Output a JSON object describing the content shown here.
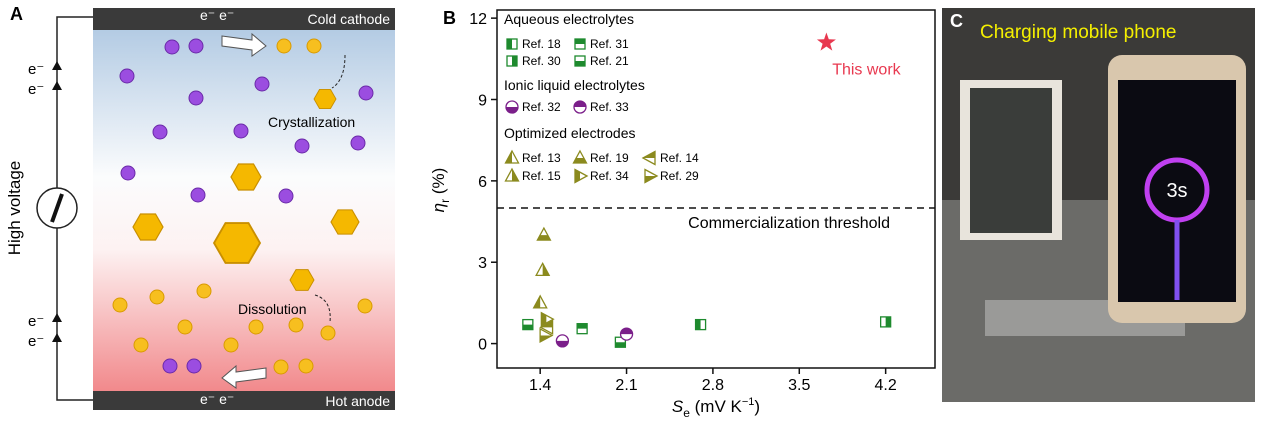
{
  "panel_a": {
    "label": "A",
    "top_bar": "Cold cathode",
    "bottom_bar": "Hot anode",
    "top_electrons": "e⁻ e⁻",
    "bottom_electrons": "e⁻ e⁻",
    "side_label": "High voltage",
    "electrons": [
      "e⁻",
      "e⁻",
      "e⁻",
      "e⁻"
    ],
    "crystallization": "Crystallization",
    "dissolution": "Dissolution"
  },
  "chart_data": {
    "type": "scatter",
    "panel_label": "B",
    "xlabel_parts": [
      "S",
      "e",
      " (mV K",
      "−1",
      ")"
    ],
    "ylabel_parts": [
      "η",
      "r",
      " (%)"
    ],
    "xlim": [
      1.05,
      4.6
    ],
    "ylim": [
      -0.9,
      12.3
    ],
    "xticks": [
      1.4,
      2.1,
      2.8,
      3.5,
      4.2
    ],
    "yticks": [
      0,
      3,
      6,
      9,
      12
    ],
    "threshold": {
      "value": 5,
      "label": "Commercialization threshold"
    },
    "highlight": {
      "name": "This work",
      "color": "#e8384f",
      "x": [
        3.72
      ],
      "values": [
        11.1
      ]
    },
    "groups": [
      {
        "title": "Aqueous electrolytes",
        "series": [
          {
            "name": "Ref. 18",
            "color": "#1e8a2e",
            "shape": "square",
            "half": "left",
            "x": [
              2.7
            ],
            "values": [
              0.7
            ]
          },
          {
            "name": "Ref. 31",
            "color": "#1e8a2e",
            "shape": "square",
            "half": "top",
            "x": [
              1.74
            ],
            "values": [
              0.55
            ]
          },
          {
            "name": "Ref. 30",
            "color": "#1e8a2e",
            "shape": "square",
            "half": "right",
            "x": [
              4.2
            ],
            "values": [
              0.8
            ]
          },
          {
            "name": "Ref. 21",
            "color": "#1e8a2e",
            "shape": "square",
            "half": "bottom",
            "x": [
              1.3,
              2.05
            ],
            "values": [
              0.7,
              0.05
            ]
          }
        ]
      },
      {
        "title": "Ionic liquid electrolytes",
        "series": [
          {
            "name": "Ref. 32",
            "color": "#7b1f8a",
            "shape": "circle",
            "half": "bottom",
            "x": [
              1.58
            ],
            "values": [
              0.1
            ]
          },
          {
            "name": "Ref. 33",
            "color": "#7b1f8a",
            "shape": "circle",
            "half": "top",
            "x": [
              2.1
            ],
            "values": [
              0.35
            ]
          }
        ]
      },
      {
        "title": "Optimized electrodes",
        "series": [
          {
            "name": "Ref. 13",
            "color": "#8b8a1e",
            "shape": "up",
            "half": "left",
            "x": [
              1.4
            ],
            "values": [
              1.5
            ]
          },
          {
            "name": "Ref. 19",
            "color": "#8b8a1e",
            "shape": "up",
            "half": "bottom",
            "x": [
              1.43
            ],
            "values": [
              4.0
            ]
          },
          {
            "name": "Ref. 14",
            "color": "#8b8a1e",
            "shape": "left",
            "half": "top",
            "x": [
              1.46
            ],
            "values": [
              0.6
            ]
          },
          {
            "name": "Ref. 15",
            "color": "#8b8a1e",
            "shape": "up",
            "half": "right",
            "x": [
              1.42
            ],
            "values": [
              2.7
            ]
          },
          {
            "name": "Ref. 34",
            "color": "#8b8a1e",
            "shape": "right",
            "half": "left",
            "x": [
              1.45
            ],
            "values": [
              0.9
            ]
          },
          {
            "name": "Ref. 29",
            "color": "#8b8a1e",
            "shape": "right",
            "half": "bottom",
            "x": [
              1.44
            ],
            "values": [
              0.3
            ]
          }
        ]
      }
    ]
  },
  "panel_c": {
    "label": "C",
    "caption": "Charging mobile phone",
    "screen": "3s"
  }
}
